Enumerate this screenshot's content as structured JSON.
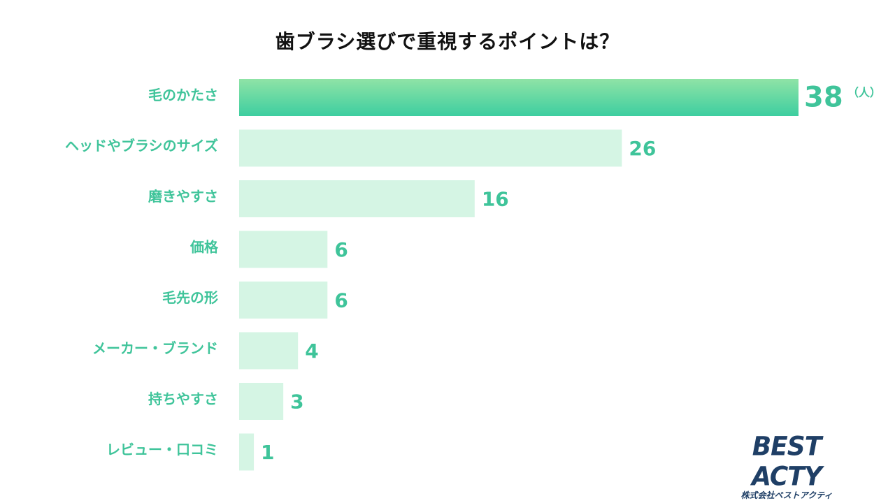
{
  "chart_data": {
    "type": "bar",
    "orientation": "horizontal",
    "title": "歯ブラシ選びで重視するポイントは？",
    "categories": [
      "毛のかたさ",
      "ヘッドやブラシのサイズ",
      "磨きやすさ",
      "価格",
      "毛先の形",
      "メーカー・ブランド",
      "持ちやすさ",
      "レビュー・口コミ"
    ],
    "values": [
      38,
      26,
      16,
      6,
      6,
      4,
      3,
      1
    ],
    "unit": "（人）",
    "highlight_index": 0,
    "grid": false
  },
  "colors": {
    "highlight_top": "#8fe3a6",
    "highlight_bottom": "#3dcea0",
    "bar": "#d5f5e4",
    "label": "#3fc49a",
    "value": "#3fc49a",
    "title": "#111111"
  },
  "logo": {
    "name": "BEST ACTY",
    "subtitle": "株式会社ベストアクティ"
  }
}
